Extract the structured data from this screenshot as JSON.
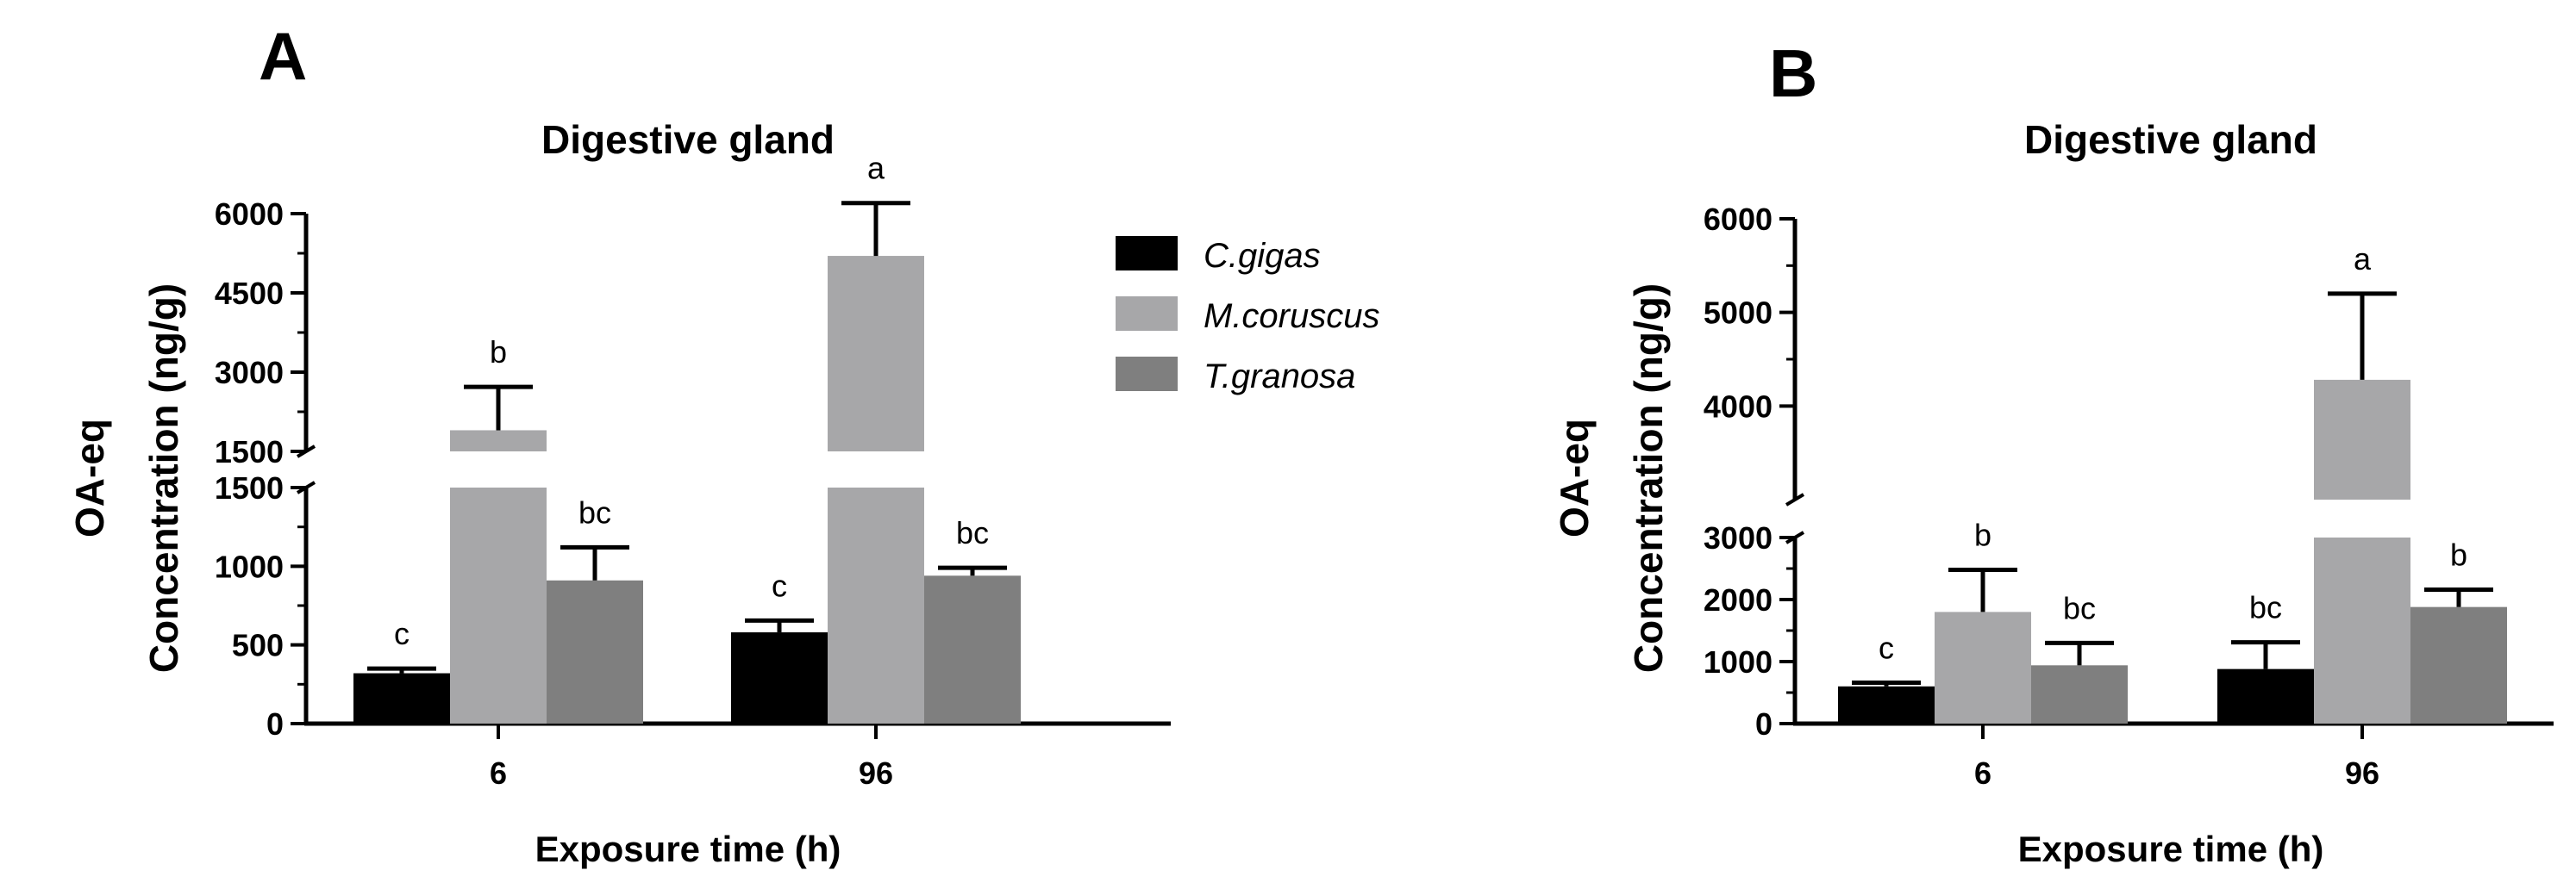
{
  "series_colors": {
    "C.gigas": "#000000",
    "M.coruscus": "#a7a7a9",
    "T.granosa": "#7f7f7f"
  },
  "legend": {
    "items": [
      {
        "name": "C.gigas",
        "color": "#000000"
      },
      {
        "name": "M.coruscus",
        "color": "#a7a7a9"
      },
      {
        "name": "T.granosa",
        "color": "#7f7f7f"
      }
    ],
    "placement": "between panels, top"
  },
  "chart_data": [
    {
      "panel": "A",
      "type": "bar",
      "title": "Digestive gland",
      "xlabel": "Exposure time (h)",
      "ylabel_line1": "OA-eq",
      "ylabel_line2": "Concentration (ng/g)",
      "categories": [
        "6",
        "96"
      ],
      "series": [
        {
          "name": "C.gigas",
          "values": [
            320,
            580
          ],
          "errors": [
            30,
            75
          ],
          "labels": [
            "c",
            "c"
          ]
        },
        {
          "name": "M.coruscus",
          "values": [
            1900,
            5200
          ],
          "errors": [
            820,
            1000
          ],
          "labels": [
            "b",
            "a"
          ]
        },
        {
          "name": "T.granosa",
          "values": [
            910,
            940
          ],
          "errors": [
            210,
            50
          ],
          "labels": [
            "bc",
            "bc"
          ]
        }
      ],
      "axis_break": true,
      "lower_axis": {
        "ylim": [
          0,
          1500
        ],
        "ticks": [
          "0",
          "500",
          "1000",
          "1500"
        ]
      },
      "upper_axis": {
        "ylim": [
          1500,
          6000
        ],
        "ticks": [
          "1500",
          "3000",
          "4500",
          "6000"
        ]
      },
      "ylim": [
        0,
        6000
      ]
    },
    {
      "panel": "B",
      "type": "bar",
      "title": "Digestive gland",
      "xlabel": "Exposure time (h)",
      "ylabel_line1": "OA-eq",
      "ylabel_line2": "Concentration (ng/g)",
      "categories": [
        "6",
        "96"
      ],
      "series": [
        {
          "name": "C.gigas",
          "values": [
            600,
            880
          ],
          "errors": [
            60,
            430
          ],
          "labels": [
            "c",
            "bc"
          ]
        },
        {
          "name": "M.coruscus",
          "values": [
            1800,
            4280
          ],
          "errors": [
            680,
            920
          ],
          "labels": [
            "b",
            "a"
          ]
        },
        {
          "name": "T.granosa",
          "values": [
            940,
            1880
          ],
          "errors": [
            360,
            280
          ],
          "labels": [
            "bc",
            "b"
          ]
        }
      ],
      "axis_break": true,
      "lower_axis": {
        "ylim": [
          0,
          3000
        ],
        "ticks": [
          "0",
          "1000",
          "2000",
          "3000"
        ]
      },
      "upper_axis": {
        "ylim": [
          3000,
          6000
        ],
        "ticks": [
          "4000",
          "5000",
          "6000"
        ]
      },
      "ylim": [
        0,
        6000
      ]
    }
  ]
}
